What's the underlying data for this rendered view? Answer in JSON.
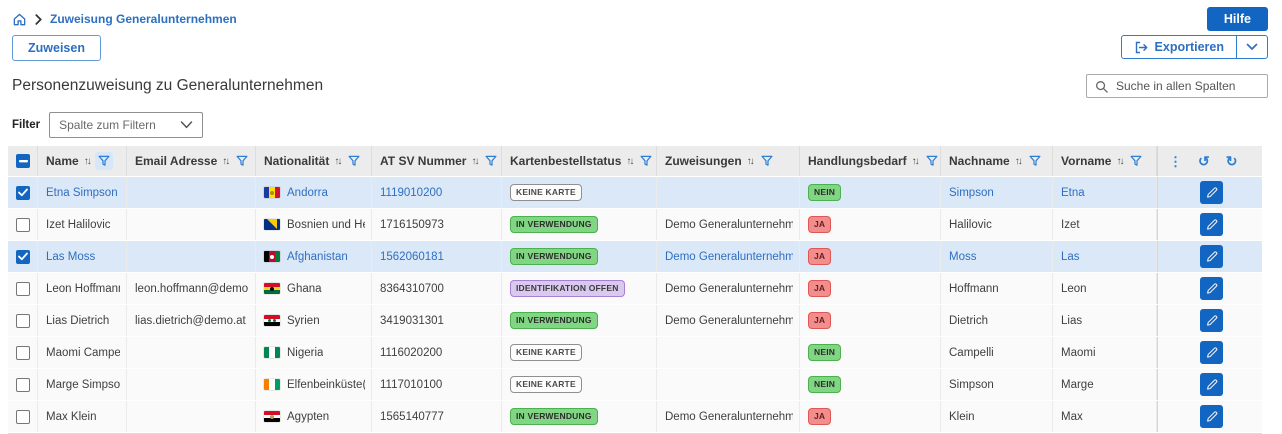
{
  "breadcrumb": {
    "item": "Zuweisung Generalunternehmen"
  },
  "toolbar": {
    "hilfe": "Hilfe",
    "zuweisen": "Zuweisen",
    "exportieren": "Exportieren"
  },
  "page_title": "Personenzuweisung zu Generalunternehmen",
  "search": {
    "placeholder": "Suche in allen Spalten"
  },
  "filter": {
    "label": "Filter",
    "dropdown_value": "Spalte zum Filtern"
  },
  "icons": {
    "sort": "↑↓",
    "column_menu": "⋮",
    "reset": "↺",
    "refresh": "↻"
  },
  "colors": {
    "accent_blue": "#1266c1",
    "link_blue": "#2d6fc0",
    "selected_row": "#dbe8f7",
    "badge_green_bg": "#81d683",
    "badge_red_bg": "#f08d8d",
    "badge_purple_bg": "#d9c9ef"
  },
  "table": {
    "columns": [
      {
        "label": "Name",
        "filter_active": true
      },
      {
        "label": "Email Adresse",
        "filter_active": false
      },
      {
        "label": "Nationalität",
        "filter_active": false
      },
      {
        "label": "AT SV Nummer",
        "filter_active": false
      },
      {
        "label": "Kartenbestellstatus",
        "filter_active": false
      },
      {
        "label": "Zuweisungen",
        "filter_active": false
      },
      {
        "label": "Handlungsbedarf",
        "filter_active": false
      },
      {
        "label": "Nachname",
        "filter_active": false
      },
      {
        "label": "Vorname",
        "filter_active": false
      }
    ],
    "rows": [
      {
        "selected": true,
        "name": "Etna Simpson",
        "email": "",
        "nationality": "Andorra",
        "flag": {
          "dir": "v",
          "stripes": [
            "#1a3b9e",
            "#fedd00",
            "#d0103a"
          ],
          "emblem": {
            "shape": "dot",
            "color": "#b8860b"
          }
        },
        "svnr": "1119010200",
        "status": {
          "label": "KEINE KARTE",
          "type": "outline"
        },
        "zuweisung": "",
        "handlungsbedarf": {
          "label": "NEIN",
          "type": "green"
        },
        "nachname": "Simpson",
        "vorname": "Etna"
      },
      {
        "selected": false,
        "name": "Izet Halilovic",
        "email": "",
        "nationality": "Bosnien und Herzego",
        "flag": {
          "dir": "h",
          "stripes": [
            "#002f87"
          ],
          "emblem": {
            "shape": "triangle",
            "color": "#fecb00"
          }
        },
        "svnr": "1716150973",
        "status": {
          "label": "IN VERWENDUNG",
          "type": "green"
        },
        "zuweisung": "Demo Generalunternehmer",
        "handlungsbedarf": {
          "label": "JA",
          "type": "red"
        },
        "nachname": "Halilovic",
        "vorname": "Izet"
      },
      {
        "selected": true,
        "name": "Las Moss",
        "email": "",
        "nationality": "Afghanistan",
        "flag": {
          "dir": "v",
          "stripes": [
            "#000000",
            "#bf0a30",
            "#007a36"
          ],
          "emblem": {
            "shape": "dot",
            "color": "#ffffff"
          }
        },
        "svnr": "1562060181",
        "status": {
          "label": "IN VERWENDUNG",
          "type": "green"
        },
        "zuweisung": "Demo Generalunternehmer",
        "handlungsbedarf": {
          "label": "JA",
          "type": "red"
        },
        "nachname": "Moss",
        "vorname": "Las"
      },
      {
        "selected": false,
        "name": "Leon Hoffmann",
        "email": "leon.hoffmann@demo.at",
        "nationality": "Ghana",
        "flag": {
          "dir": "h",
          "stripes": [
            "#ce1126",
            "#fcd116",
            "#006b3f"
          ],
          "emblem": {
            "shape": "dot",
            "color": "#000000"
          }
        },
        "svnr": "8364310700",
        "status": {
          "label": "IDENTIFIKATION OFFEN",
          "type": "purple"
        },
        "zuweisung": "Demo Generalunternehmer",
        "handlungsbedarf": {
          "label": "JA",
          "type": "red"
        },
        "nachname": "Hoffmann",
        "vorname": "Leon"
      },
      {
        "selected": false,
        "name": "Lias Dietrich",
        "email": "lias.dietrich@demo.at",
        "nationality": "Syrien",
        "flag": {
          "dir": "h",
          "stripes": [
            "#ce1126",
            "#ffffff",
            "#000000"
          ],
          "emblem": {
            "shape": "dots2",
            "color": "#007a3d"
          }
        },
        "svnr": "3419031301",
        "status": {
          "label": "IN VERWENDUNG",
          "type": "green"
        },
        "zuweisung": "Demo Generalunternehmer",
        "handlungsbedarf": {
          "label": "JA",
          "type": "red"
        },
        "nachname": "Dietrich",
        "vorname": "Lias"
      },
      {
        "selected": false,
        "name": "Maomi Campelli",
        "email": "",
        "nationality": "Nigeria",
        "flag": {
          "dir": "v",
          "stripes": [
            "#008751",
            "#ffffff",
            "#008751"
          ]
        },
        "svnr": "1116020200",
        "status": {
          "label": "KEINE KARTE",
          "type": "outline"
        },
        "zuweisung": "",
        "handlungsbedarf": {
          "label": "NEIN",
          "type": "green"
        },
        "nachname": "Campelli",
        "vorname": "Maomi"
      },
      {
        "selected": false,
        "name": "Marge Simpson",
        "email": "",
        "nationality": "Elfenbeinküste(Côte",
        "flag": {
          "dir": "v",
          "stripes": [
            "#f77f00",
            "#ffffff",
            "#009e60"
          ]
        },
        "svnr": "1117010100",
        "status": {
          "label": "KEINE KARTE",
          "type": "outline"
        },
        "zuweisung": "",
        "handlungsbedarf": {
          "label": "NEIN",
          "type": "green"
        },
        "nachname": "Simpson",
        "vorname": "Marge"
      },
      {
        "selected": false,
        "name": "Max Klein",
        "email": "",
        "nationality": "Ägypten",
        "flag": {
          "dir": "h",
          "stripes": [
            "#ce1126",
            "#ffffff",
            "#000000"
          ],
          "emblem": {
            "shape": "dot",
            "color": "#c09a53"
          }
        },
        "svnr": "1565140777",
        "status": {
          "label": "IN VERWENDUNG",
          "type": "green"
        },
        "zuweisung": "Demo Generalunternehmer",
        "handlungsbedarf": {
          "label": "JA",
          "type": "red"
        },
        "nachname": "Klein",
        "vorname": "Max"
      }
    ]
  }
}
